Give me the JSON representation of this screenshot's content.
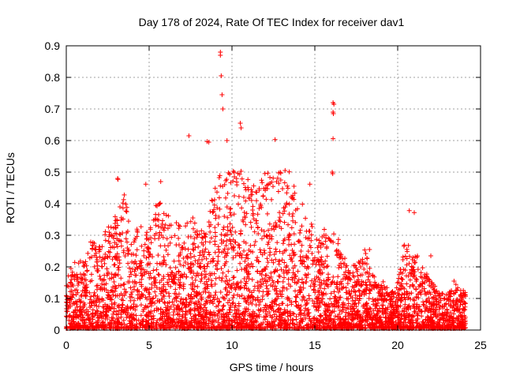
{
  "chart_data": {
    "type": "scatter",
    "title": "Day 178 of 2024, Rate Of TEC Index for receiver dav1",
    "xlabel": "GPS time / hours",
    "ylabel": "ROTI / TECUs",
    "xlim": [
      0,
      25
    ],
    "ylim": [
      0,
      0.9
    ],
    "x_ticks": [
      0,
      5,
      10,
      15,
      20,
      25
    ],
    "y_ticks": [
      0,
      0.1,
      0.2,
      0.3,
      0.4,
      0.5,
      0.6,
      0.7,
      0.8,
      0.9
    ],
    "grid": true,
    "legend": "none",
    "marker": "+",
    "color": "#ff0000",
    "notable_points": [
      {
        "x": 9.3,
        "y": 0.88
      },
      {
        "x": 9.3,
        "y": 0.87
      },
      {
        "x": 9.35,
        "y": 0.805
      },
      {
        "x": 9.4,
        "y": 0.745
      },
      {
        "x": 9.45,
        "y": 0.7
      },
      {
        "x": 7.4,
        "y": 0.615
      },
      {
        "x": 8.5,
        "y": 0.597
      },
      {
        "x": 8.6,
        "y": 0.595
      },
      {
        "x": 9.7,
        "y": 0.6
      },
      {
        "x": 10.5,
        "y": 0.655
      },
      {
        "x": 10.55,
        "y": 0.64
      },
      {
        "x": 12.6,
        "y": 0.603
      },
      {
        "x": 16.1,
        "y": 0.72
      },
      {
        "x": 16.15,
        "y": 0.715
      },
      {
        "x": 16.1,
        "y": 0.69
      },
      {
        "x": 16.12,
        "y": 0.685
      },
      {
        "x": 16.1,
        "y": 0.606
      },
      {
        "x": 16.05,
        "y": 0.5
      },
      {
        "x": 16.08,
        "y": 0.495
      },
      {
        "x": 3.1,
        "y": 0.48
      },
      {
        "x": 3.12,
        "y": 0.477
      },
      {
        "x": 4.8,
        "y": 0.462
      },
      {
        "x": 5.7,
        "y": 0.47
      },
      {
        "x": 14.7,
        "y": 0.462
      },
      {
        "x": 20.7,
        "y": 0.378
      },
      {
        "x": 21.0,
        "y": 0.372
      },
      {
        "x": 18.3,
        "y": 0.255
      },
      {
        "x": 22.0,
        "y": 0.235
      },
      {
        "x": 23.4,
        "y": 0.155
      }
    ],
    "density_envelope": [
      {
        "x": 0,
        "y": 0.16
      },
      {
        "x": 0.5,
        "y": 0.22
      },
      {
        "x": 1,
        "y": 0.22
      },
      {
        "x": 1.5,
        "y": 0.28
      },
      {
        "x": 2,
        "y": 0.26
      },
      {
        "x": 2.5,
        "y": 0.34
      },
      {
        "x": 3,
        "y": 0.36
      },
      {
        "x": 3.5,
        "y": 0.43
      },
      {
        "x": 4,
        "y": 0.3
      },
      {
        "x": 4.5,
        "y": 0.33
      },
      {
        "x": 5,
        "y": 0.3
      },
      {
        "x": 5.5,
        "y": 0.42
      },
      {
        "x": 6,
        "y": 0.37
      },
      {
        "x": 6.5,
        "y": 0.35
      },
      {
        "x": 7,
        "y": 0.33
      },
      {
        "x": 7.5,
        "y": 0.37
      },
      {
        "x": 8,
        "y": 0.3
      },
      {
        "x": 8.5,
        "y": 0.35
      },
      {
        "x": 9,
        "y": 0.45
      },
      {
        "x": 9.5,
        "y": 0.52
      },
      {
        "x": 10,
        "y": 0.5
      },
      {
        "x": 10.5,
        "y": 0.55
      },
      {
        "x": 11,
        "y": 0.48
      },
      {
        "x": 11.5,
        "y": 0.45
      },
      {
        "x": 12,
        "y": 0.5
      },
      {
        "x": 12.5,
        "y": 0.48
      },
      {
        "x": 13,
        "y": 0.5
      },
      {
        "x": 13.5,
        "y": 0.53
      },
      {
        "x": 14,
        "y": 0.42
      },
      {
        "x": 14.5,
        "y": 0.38
      },
      {
        "x": 15,
        "y": 0.3
      },
      {
        "x": 15.5,
        "y": 0.32
      },
      {
        "x": 16,
        "y": 0.35
      },
      {
        "x": 16.5,
        "y": 0.27
      },
      {
        "x": 17,
        "y": 0.22
      },
      {
        "x": 17.5,
        "y": 0.2
      },
      {
        "x": 18,
        "y": 0.25
      },
      {
        "x": 18.5,
        "y": 0.17
      },
      {
        "x": 19,
        "y": 0.16
      },
      {
        "x": 19.5,
        "y": 0.12
      },
      {
        "x": 20,
        "y": 0.15
      },
      {
        "x": 20.5,
        "y": 0.3
      },
      {
        "x": 21,
        "y": 0.25
      },
      {
        "x": 21.5,
        "y": 0.2
      },
      {
        "x": 22,
        "y": 0.15
      },
      {
        "x": 22.5,
        "y": 0.12
      },
      {
        "x": 23,
        "y": 0.11
      },
      {
        "x": 23.5,
        "y": 0.14
      },
      {
        "x": 24,
        "y": 0.12
      }
    ]
  }
}
